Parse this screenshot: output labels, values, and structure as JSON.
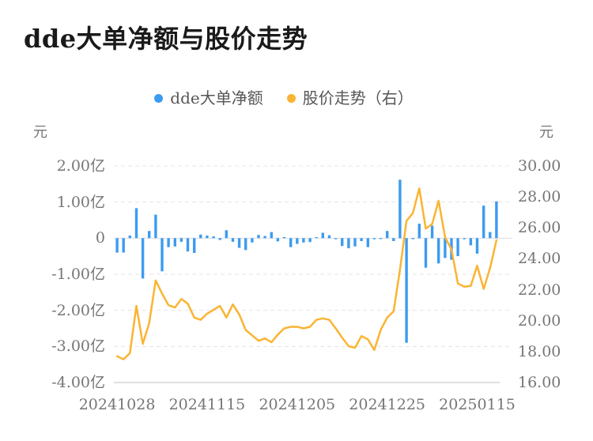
{
  "title": "dde大单净额与股价走势",
  "legend": {
    "items": [
      {
        "label": "dde大单净额",
        "color": "#3C9BF0",
        "marker": "circle"
      },
      {
        "label": "股价走势（右）",
        "color": "#FAB433",
        "marker": "circle"
      }
    ]
  },
  "left_axis_unit": "元",
  "right_axis_unit": "元",
  "chart_data": {
    "type": "bar+line",
    "title": "dde大单净额与股价走势",
    "grid": "horizontal dashed",
    "legend_position": "top-center",
    "x": [
      "20241028",
      "20241029",
      "20241030",
      "20241031",
      "20241101",
      "20241104",
      "20241105",
      "20241106",
      "20241107",
      "20241108",
      "20241111",
      "20241112",
      "20241113",
      "20241114",
      "20241115",
      "20241118",
      "20241119",
      "20241120",
      "20241121",
      "20241122",
      "20241125",
      "20241126",
      "20241127",
      "20241128",
      "20241129",
      "20241202",
      "20241203",
      "20241204",
      "20241205",
      "20241206",
      "20241209",
      "20241210",
      "20241211",
      "20241212",
      "20241213",
      "20241216",
      "20241217",
      "20241218",
      "20241219",
      "20241220",
      "20241223",
      "20241224",
      "20241225",
      "20241226",
      "20241227",
      "20241230",
      "20241231",
      "20250102",
      "20250103",
      "20250106",
      "20250107",
      "20250108",
      "20250109",
      "20250110",
      "20250113",
      "20250114",
      "20250115",
      "20250116",
      "20250117",
      "20250120"
    ],
    "x_tick_labels": [
      "20241028",
      "20241115",
      "20241205",
      "20241225",
      "20250115"
    ],
    "x_tick_indices": [
      0,
      14,
      28,
      42,
      56
    ],
    "left_axis": {
      "name": "元",
      "ticks": [
        "2.00亿",
        "1.00亿",
        "0",
        "-1.00亿",
        "-2.00亿",
        "-3.00亿",
        "-4.00亿"
      ],
      "lim": [
        -4,
        2
      ]
    },
    "right_axis": {
      "name": "元",
      "ticks": [
        "30.00",
        "28.00",
        "26.00",
        "24.00",
        "22.00",
        "20.00",
        "18.00",
        "16.00"
      ],
      "lim": [
        16,
        30
      ]
    },
    "series": [
      {
        "name": "dde大单净额",
        "type": "bar",
        "y_axis": "left",
        "unit": "亿元",
        "color": "#3C9BF0",
        "values": [
          -0.4,
          -0.4,
          0.07,
          0.83,
          -1.12,
          0.2,
          0.65,
          -0.92,
          -0.25,
          -0.23,
          -0.1,
          -0.37,
          -0.41,
          0.1,
          0.07,
          0.05,
          -0.05,
          0.22,
          -0.1,
          -0.27,
          -0.33,
          -0.12,
          0.09,
          0.06,
          0.17,
          -0.09,
          0.03,
          -0.25,
          -0.16,
          -0.12,
          -0.11,
          0.02,
          0.15,
          0.08,
          -0.03,
          -0.22,
          -0.28,
          -0.23,
          -0.08,
          -0.25,
          -0.03,
          -0.02,
          0.2,
          -0.08,
          1.62,
          -2.9,
          -0.03,
          0.4,
          -0.82,
          0.35,
          -0.7,
          -0.55,
          -0.6,
          -0.5,
          -0.03,
          -0.2,
          -0.43,
          0.9,
          0.17,
          1.02
        ]
      },
      {
        "name": "股价走势（右）",
        "type": "line",
        "y_axis": "right",
        "unit": "元",
        "color": "#FAB433",
        "values": [
          17.7,
          17.5,
          17.9,
          20.95,
          18.5,
          19.85,
          22.6,
          21.75,
          21.0,
          20.85,
          21.4,
          21.1,
          20.2,
          20.05,
          20.45,
          20.7,
          20.95,
          20.2,
          21.05,
          20.4,
          19.4,
          19.05,
          18.7,
          18.85,
          18.6,
          19.1,
          19.5,
          19.6,
          19.6,
          19.5,
          19.6,
          20.05,
          20.15,
          20.05,
          19.5,
          18.9,
          18.35,
          18.25,
          19.0,
          18.8,
          18.1,
          19.4,
          20.2,
          20.6,
          23.3,
          26.45,
          26.95,
          28.55,
          25.95,
          26.25,
          27.75,
          25.4,
          24.6,
          22.4,
          22.2,
          22.25,
          23.55,
          22.05,
          23.4,
          25.2
        ]
      }
    ]
  }
}
